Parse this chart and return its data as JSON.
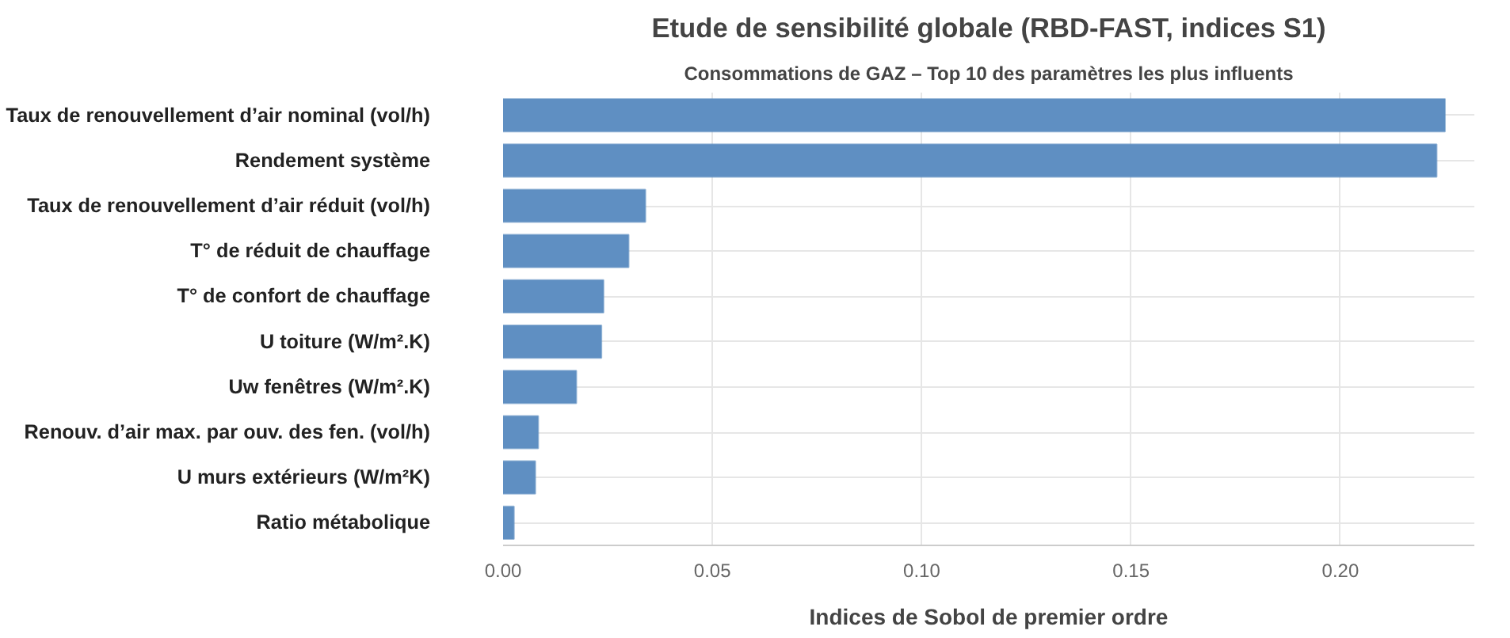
{
  "chart_data": {
    "type": "bar",
    "orientation": "horizontal",
    "title": "Etude de sensibilité globale (RBD-FAST, indices S1)",
    "subtitle": "Consommations de GAZ – Top 10 des paramètres les plus influents",
    "xlabel": "Indices de Sobol de premier ordre",
    "categories": [
      "Taux de renouvellement d’air nominal (vol/h)",
      "Rendement système",
      "Taux de renouvellement d’air réduit (vol/h)",
      "T° de réduit de chauffage",
      "T° de confort de chauffage",
      "U toiture (W/m².K)",
      "Uw fenêtres (W/m².K)",
      "Renouv. d’air max. par ouv. des fen. (vol/h)",
      "U murs extérieurs (W/m²K)",
      "Ratio métabolique"
    ],
    "values": [
      0.225,
      0.223,
      0.034,
      0.03,
      0.024,
      0.0235,
      0.0175,
      0.0084,
      0.0077,
      0.0026
    ],
    "color": "#5f8fc2",
    "xlim": [
      0,
      0.232
    ],
    "xticks": [
      {
        "value": 0,
        "label": "0.00"
      },
      {
        "value": 0.05,
        "label": "0.05"
      },
      {
        "value": 0.1,
        "label": "0.10"
      },
      {
        "value": 0.15,
        "label": "0.15"
      },
      {
        "value": 0.2,
        "label": "0.20"
      }
    ],
    "grid": true
  }
}
